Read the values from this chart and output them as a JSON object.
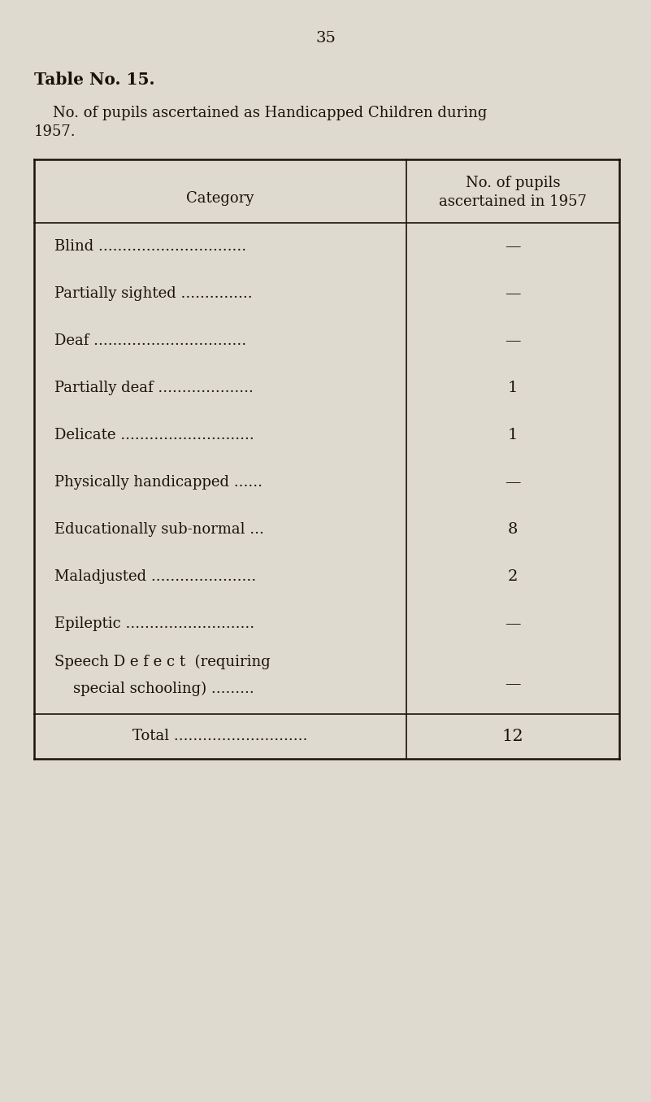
{
  "page_number": "35",
  "table_title_bold": "Table No. 15.",
  "subtitle_line1": "    No. of pupils ascertained as Handicapped Children during",
  "subtitle_line2": "1957.",
  "col1_header": "Category",
  "col2_header_line1": "No. of pupils",
  "col2_header_line2": "ascertained in 1957",
  "categories": [
    "Blind ...............................",
    "Partially sighted ...............",
    "Deaf ................................",
    "Partially deaf ....................",
    "Delicate ............................",
    "Physically handicapped ......",
    "Educationally sub-normal ...",
    "Maladjusted ......................",
    "Epileptic ...........................",
    "Speech D e f e c t  (requiring\n    special schooling) ........."
  ],
  "values": [
    "—",
    "—",
    "—",
    "1",
    "1",
    "—",
    "8",
    "2",
    "—",
    "—"
  ],
  "total_label": "Total ............................",
  "total_value": "12",
  "bg_color": "#dedad0",
  "text_color": "#1a1209",
  "line_color": "#1a1209",
  "page_num_fontsize": 14,
  "title_fontsize": 14.5,
  "subtitle_fontsize": 13,
  "header_fontsize": 13,
  "row_fontsize": 13,
  "total_fontsize": 13,
  "fig_width": 8.01,
  "fig_height": 13.55,
  "dpi": 100
}
